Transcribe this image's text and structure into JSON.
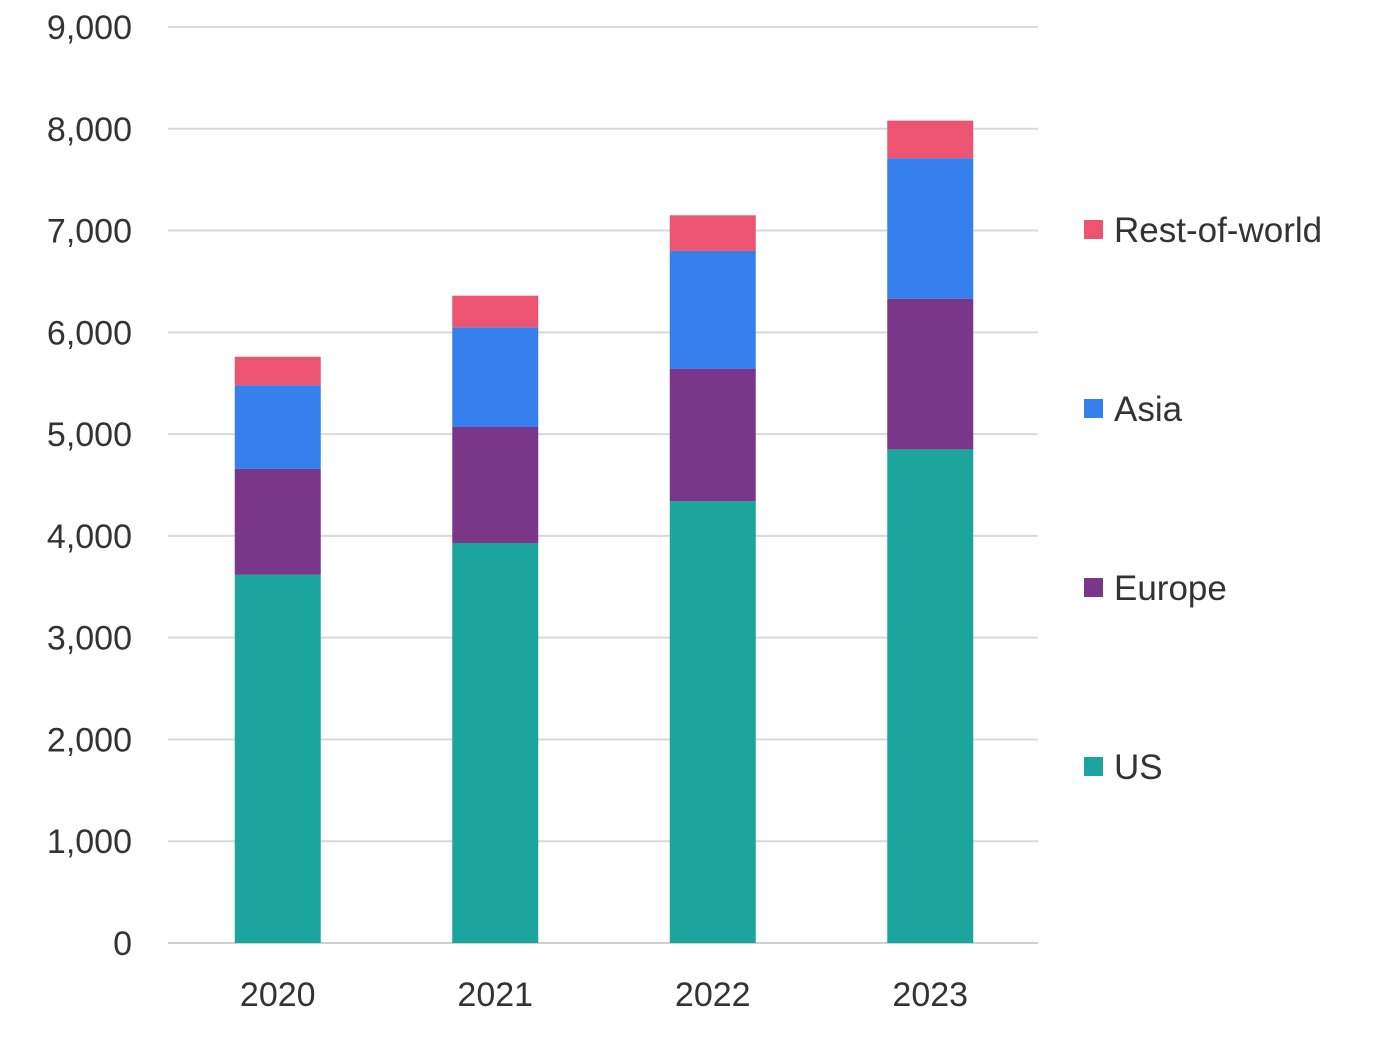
{
  "chart_data": {
    "type": "bar",
    "stacked": true,
    "title": "",
    "xlabel": "",
    "ylabel": "",
    "categories": [
      "2020",
      "2021",
      "2022",
      "2023"
    ],
    "ylim": [
      0,
      9000
    ],
    "yticks": [
      0,
      1000,
      2000,
      3000,
      4000,
      5000,
      6000,
      7000,
      8000,
      9000
    ],
    "ytick_labels": [
      "0",
      "1,000",
      "2,000",
      "3,000",
      "4,000",
      "5,000",
      "6,000",
      "7,000",
      "8,000",
      "9,000"
    ],
    "grid": true,
    "legend_position": "right",
    "series": [
      {
        "name": "US",
        "color": "#1ba59d",
        "values": [
          3620,
          3930,
          4340,
          4850
        ]
      },
      {
        "name": "Europe",
        "color": "#7a3689",
        "values": [
          1040,
          1140,
          1300,
          1480
        ]
      },
      {
        "name": "Asia",
        "color": "#3580ec",
        "values": [
          820,
          980,
          1160,
          1380
        ]
      },
      {
        "name": "Rest-of-world",
        "color": "#ec5472",
        "values": [
          280,
          310,
          350,
          370
        ]
      }
    ],
    "legend_order": [
      "Rest-of-world",
      "Asia",
      "Europe",
      "US"
    ]
  }
}
